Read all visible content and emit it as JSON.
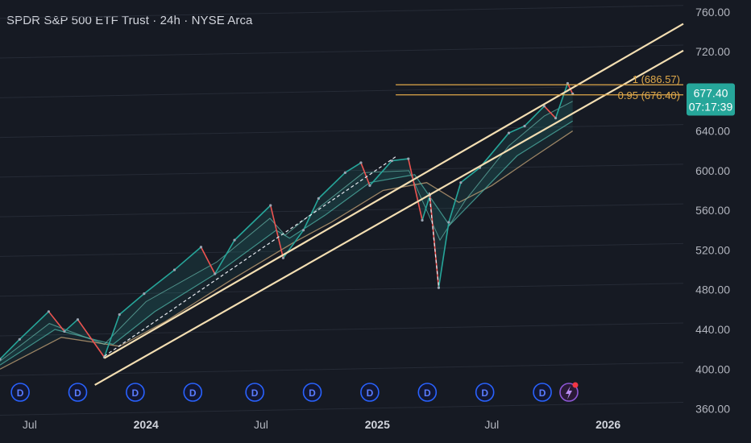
{
  "header": {
    "title": "SPDR S&P 500 ETF Trust · 24h · NYSE Arca"
  },
  "colors": {
    "background": "#161a23",
    "trendline": "#f3deb2",
    "fib": "#e0a94a",
    "price_tag": "#26a69a",
    "up": "#26a69a",
    "down": "#ef5350",
    "dividend": "#2962ff",
    "event_dot": "#f23645"
  },
  "chart_data": {
    "type": "line",
    "title": "SPDR S&P 500 ETF Trust · 24h · NYSE Arca",
    "ylim": [
      358,
      772
    ],
    "xlim": [
      "2023-05-15",
      "2026-04-30"
    ],
    "y_ticks": [
      "760.00",
      "720.00",
      "680.00",
      "640.00",
      "600.00",
      "560.00",
      "520.00",
      "480.00",
      "440.00",
      "400.00",
      "360.00"
    ],
    "x_ticks": [
      {
        "date": "2023-07-01",
        "label": "Jul",
        "strong": false
      },
      {
        "date": "2024-01-01",
        "label": "2024",
        "strong": true
      },
      {
        "date": "2024-07-01",
        "label": "Jul",
        "strong": false
      },
      {
        "date": "2025-01-01",
        "label": "2025",
        "strong": true
      },
      {
        "date": "2025-07-01",
        "label": "Jul",
        "strong": false
      },
      {
        "date": "2026-01-01",
        "label": "2026",
        "strong": true
      }
    ],
    "series": [
      {
        "type": "price",
        "points": [
          [
            "2023-05-15",
            410
          ],
          [
            "2023-06-15",
            430
          ],
          [
            "2023-07-31",
            458
          ],
          [
            "2023-08-25",
            438
          ],
          [
            "2023-09-15",
            450
          ],
          [
            "2023-10-27",
            412
          ],
          [
            "2023-11-20",
            455
          ],
          [
            "2023-12-29",
            476
          ],
          [
            "2024-02-15",
            500
          ],
          [
            "2024-03-28",
            523
          ],
          [
            "2024-04-19",
            496
          ],
          [
            "2024-05-20",
            530
          ],
          [
            "2024-07-16",
            565
          ],
          [
            "2024-08-05",
            512
          ],
          [
            "2024-09-06",
            540
          ],
          [
            "2024-09-30",
            572
          ],
          [
            "2024-11-11",
            598
          ],
          [
            "2024-12-06",
            608
          ],
          [
            "2024-12-20",
            585
          ],
          [
            "2025-01-24",
            610
          ],
          [
            "2025-02-19",
            612
          ],
          [
            "2025-03-13",
            550
          ],
          [
            "2025-03-25",
            575
          ],
          [
            "2025-04-08",
            482
          ],
          [
            "2025-04-24",
            548
          ],
          [
            "2025-05-13",
            588
          ],
          [
            "2025-06-12",
            603
          ],
          [
            "2025-07-28",
            638
          ],
          [
            "2025-08-22",
            645
          ],
          [
            "2025-09-22",
            665
          ],
          [
            "2025-10-10",
            653
          ],
          [
            "2025-10-29",
            688
          ],
          [
            "2025-11-06",
            677.4
          ]
        ]
      },
      {
        "type": "ema_short",
        "points": [
          [
            "2023-05-15",
            408
          ],
          [
            "2023-08-01",
            446
          ],
          [
            "2023-10-27",
            425
          ],
          [
            "2024-01-01",
            468
          ],
          [
            "2024-04-22",
            508
          ],
          [
            "2024-07-15",
            552
          ],
          [
            "2024-08-08",
            535
          ],
          [
            "2024-10-01",
            563
          ],
          [
            "2024-12-10",
            598
          ],
          [
            "2025-02-20",
            600
          ],
          [
            "2025-04-10",
            530
          ],
          [
            "2025-05-20",
            570
          ],
          [
            "2025-07-28",
            625
          ],
          [
            "2025-09-22",
            655
          ],
          [
            "2025-11-06",
            670
          ]
        ]
      },
      {
        "type": "ema_mid",
        "points": [
          [
            "2023-05-15",
            404
          ],
          [
            "2023-08-10",
            440
          ],
          [
            "2023-11-10",
            425
          ],
          [
            "2024-01-15",
            458
          ],
          [
            "2024-04-30",
            500
          ],
          [
            "2024-07-25",
            540
          ],
          [
            "2024-08-15",
            532
          ],
          [
            "2024-10-10",
            555
          ],
          [
            "2024-12-20",
            588
          ],
          [
            "2025-03-01",
            596
          ],
          [
            "2025-04-25",
            545
          ],
          [
            "2025-06-10",
            575
          ],
          [
            "2025-08-10",
            615
          ],
          [
            "2025-11-06",
            650
          ]
        ]
      },
      {
        "type": "ema_long",
        "points": [
          [
            "2023-05-15",
            400
          ],
          [
            "2023-08-20",
            432
          ],
          [
            "2023-11-20",
            423
          ],
          [
            "2024-02-01",
            448
          ],
          [
            "2024-05-15",
            490
          ],
          [
            "2024-08-20",
            527
          ],
          [
            "2024-10-20",
            548
          ],
          [
            "2025-01-10",
            580
          ],
          [
            "2025-03-20",
            588
          ],
          [
            "2025-05-10",
            568
          ],
          [
            "2025-07-01",
            585
          ],
          [
            "2025-09-01",
            612
          ],
          [
            "2025-11-06",
            640
          ]
        ]
      }
    ],
    "trend_channel": [
      {
        "from": [
          "2023-10-27",
          411
        ],
        "to": [
          "2026-04-30",
          748
        ]
      },
      {
        "from": [
          "2023-10-12",
          384
        ],
        "to": [
          "2026-04-30",
          721
        ]
      }
    ],
    "dashed_lines": [
      {
        "from": [
          "2023-10-27",
          413
        ],
        "to": [
          "2025-01-30",
          614
        ]
      },
      {
        "from": [
          "2025-03-24",
          578
        ],
        "to": [
          "2025-04-08",
          483
        ]
      }
    ],
    "fib_levels": [
      {
        "label": "1 (686.57)",
        "value": 686.57
      },
      {
        "label": "0.95 (676.40)",
        "value": 676.4
      }
    ],
    "current_price": {
      "value": "677.40",
      "countdown": "07:17:39"
    },
    "dividend_markers": [
      "2023-06-16",
      "2023-09-15",
      "2023-12-15",
      "2024-03-15",
      "2024-06-21",
      "2024-09-20",
      "2024-12-20",
      "2025-03-21",
      "2025-06-20",
      "2025-09-19"
    ],
    "dividend_label": "D",
    "event_marker": "2025-10-31"
  }
}
